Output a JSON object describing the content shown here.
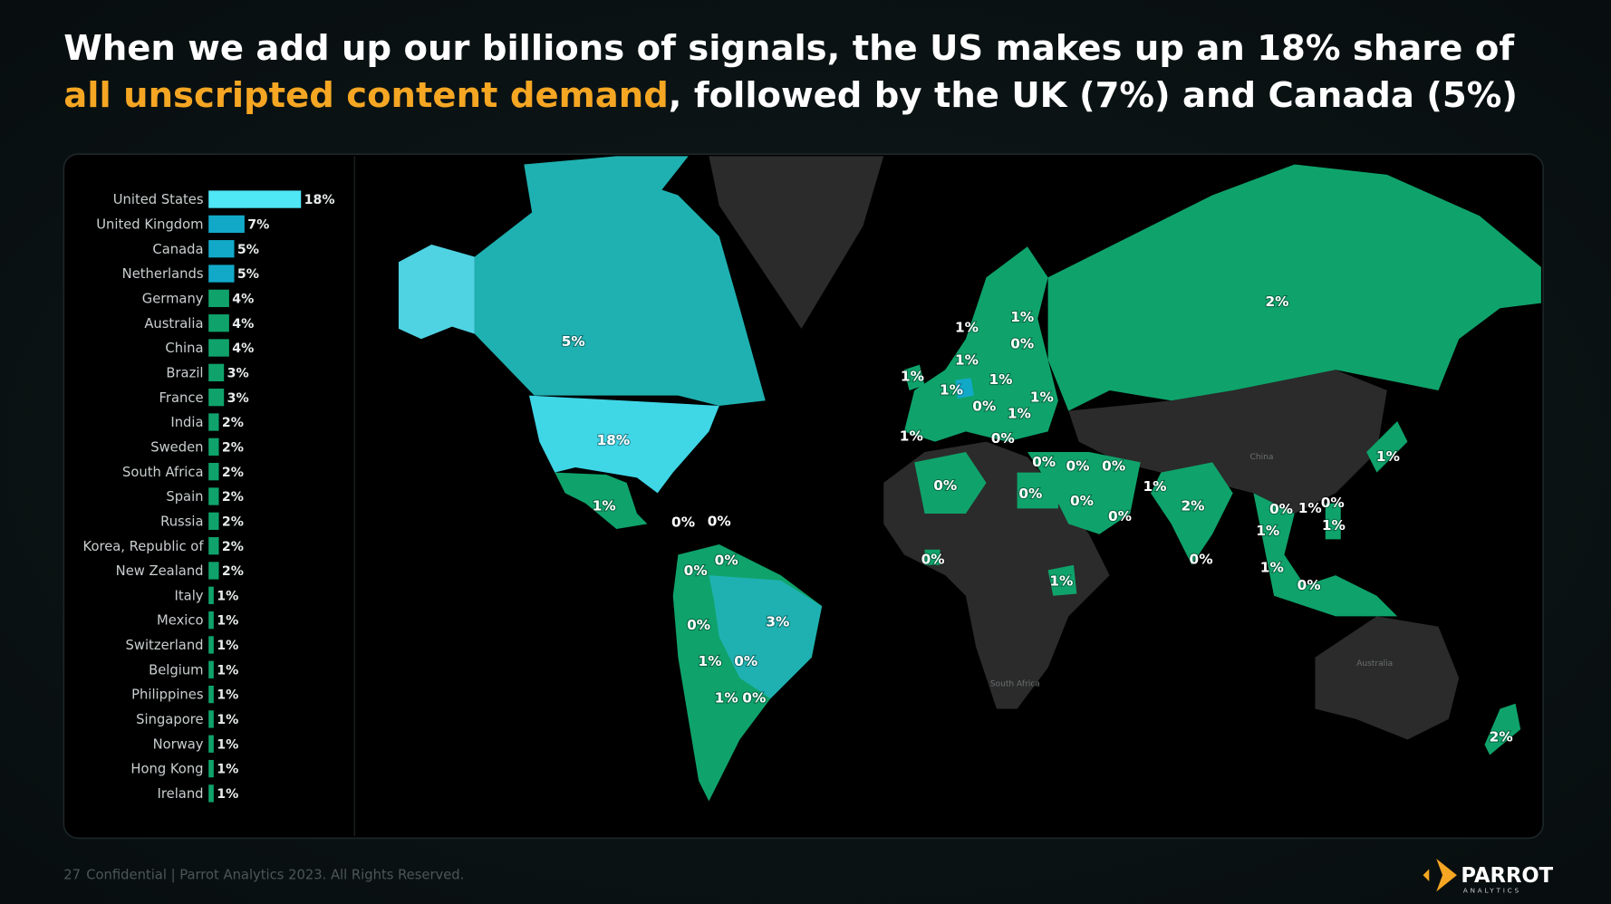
{
  "title": [
    "When we add up our billions of signals, the US makes up an 18% share of",
    "all unscripted content demand",
    ", followed by the UK (7%) and Canada (5%)"
  ],
  "highlight_color": "#f5a623",
  "chart_data": {
    "type": "bar",
    "categories": [
      "United States",
      "United Kingdom",
      "Canada",
      "Netherlands",
      "Germany",
      "Australia",
      "China",
      "Brazil",
      "France",
      "India",
      "Sweden",
      "South Africa",
      "Spain",
      "Russia",
      "Korea, Republic of",
      "New Zealand",
      "Italy",
      "Mexico",
      "Switzerland",
      "Belgium",
      "Philippines",
      "Singapore",
      "Norway",
      "Hong Kong",
      "Ireland"
    ],
    "values": [
      18,
      7,
      5,
      5,
      4,
      4,
      4,
      3,
      3,
      2,
      2,
      2,
      2,
      2,
      2,
      2,
      1,
      1,
      1,
      1,
      1,
      1,
      1,
      1,
      1
    ],
    "value_labels": [
      "18%",
      "7%",
      "5%",
      "5%",
      "4%",
      "4%",
      "4%",
      "3%",
      "3%",
      "2%",
      "2%",
      "2%",
      "2%",
      "2%",
      "2%",
      "2%",
      "1%",
      "1%",
      "1%",
      "1%",
      "1%",
      "1%",
      "1%",
      "1%",
      "1%"
    ],
    "colors": [
      "#4fe6f5",
      "#12a9c9",
      "#12a9c9",
      "#12a9c9",
      "#0fa36b",
      "#0fa36b",
      "#0fa36b",
      "#0fa36b",
      "#0fa36b",
      "#0fa36b",
      "#0fa36b",
      "#0fa36b",
      "#0fa36b",
      "#0fa36b",
      "#0fa36b",
      "#0fa36b",
      "#0fa36b",
      "#0fa36b",
      "#0fa36b",
      "#0fa36b",
      "#0fa36b",
      "#0fa36b",
      "#0fa36b",
      "#0fa36b",
      "#0fa36b"
    ],
    "xlim": [
      0,
      18
    ]
  },
  "map": {
    "labels": [
      {
        "value": 18,
        "label": "18%"
      },
      {
        "value": 5,
        "label": "5%"
      },
      {
        "value": 1,
        "label": "1%"
      },
      {
        "value": 0,
        "label": "0%"
      },
      {
        "value": 0,
        "label": "0%"
      },
      {
        "value": 0,
        "label": "0%"
      },
      {
        "value": 0,
        "label": "0%"
      },
      {
        "value": 0,
        "label": "0%"
      },
      {
        "value": 3,
        "label": "3%"
      },
      {
        "value": 1,
        "label": "1%"
      },
      {
        "value": 0,
        "label": "0%"
      },
      {
        "value": 1,
        "label": "1%"
      },
      {
        "value": 0,
        "label": "0%"
      },
      {
        "value": 0,
        "label": "0%"
      },
      {
        "value": 0,
        "label": "0%"
      },
      {
        "value": 1,
        "label": "1%"
      },
      {
        "value": 0,
        "label": "0%"
      },
      {
        "value": 0,
        "label": "0%"
      },
      {
        "value": 0,
        "label": "0%"
      },
      {
        "value": 0,
        "label": "0%"
      },
      {
        "value": 0,
        "label": "0%"
      },
      {
        "value": 0,
        "label": "0%"
      },
      {
        "value": 1,
        "label": "1%"
      },
      {
        "value": 2,
        "label": "2%"
      },
      {
        "value": 0,
        "label": "0%"
      },
      {
        "value": 2,
        "label": "2%"
      },
      {
        "value": 1,
        "label": "1%"
      },
      {
        "value": 1,
        "label": "1%"
      },
      {
        "value": 0,
        "label": "0%"
      },
      {
        "value": 1,
        "label": "1%"
      },
      {
        "value": 1,
        "label": "1%"
      },
      {
        "value": 1,
        "label": "1%"
      },
      {
        "value": 1,
        "label": "1%"
      },
      {
        "value": 0,
        "label": "0%"
      },
      {
        "value": 1,
        "label": "1%"
      },
      {
        "value": 1,
        "label": "1%"
      },
      {
        "value": 0,
        "label": "0%"
      },
      {
        "value": 1,
        "label": "1%"
      },
      {
        "value": 1,
        "label": "1%"
      },
      {
        "value": 0,
        "label": "0%"
      },
      {
        "value": 1,
        "label": "1%"
      },
      {
        "value": 0,
        "label": "0%"
      },
      {
        "value": 1,
        "label": "1%"
      },
      {
        "value": 1,
        "label": "1%"
      },
      {
        "value": 1,
        "label": "1%"
      },
      {
        "value": 0,
        "label": "0%"
      },
      {
        "value": 2,
        "label": "2%"
      }
    ],
    "place_names": [
      "China",
      "Australia",
      "South Africa"
    ]
  },
  "footer": {
    "page": "27",
    "text": "Confidential  |  Parrot Analytics 2023. All Rights Reserved."
  },
  "logo": {
    "name": "PARROT",
    "tagline": "ANALYTICS"
  }
}
